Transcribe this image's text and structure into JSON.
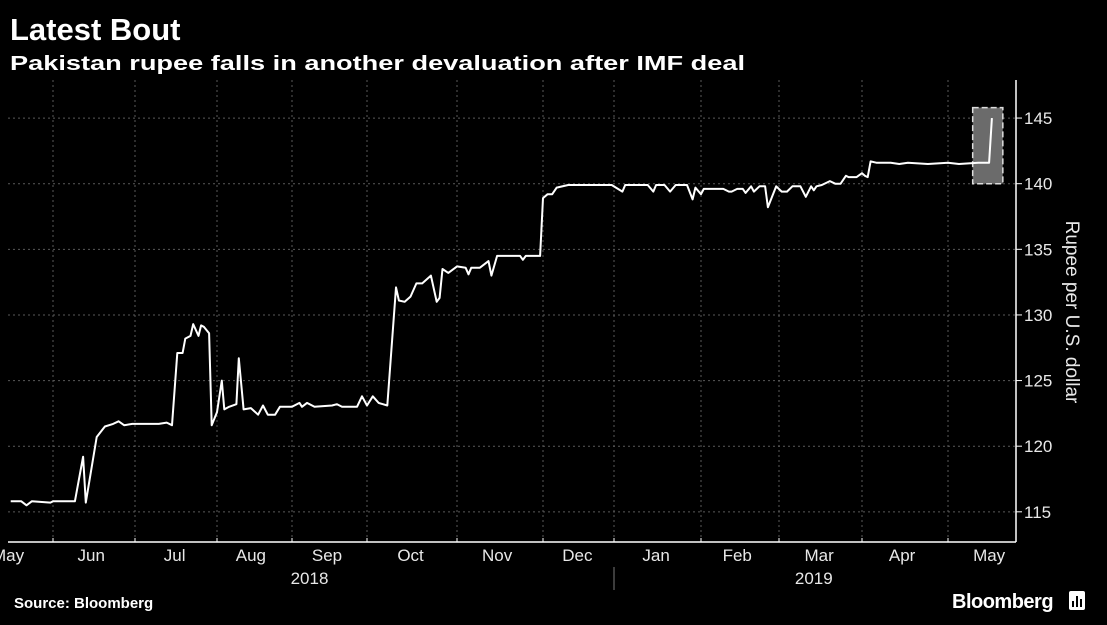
{
  "header": {
    "title": "Latest Bout",
    "subtitle": "Pakistan rupee falls in another devaluation after IMF deal"
  },
  "footer": {
    "source": "Source: Bloomberg",
    "logo": "Bloomberg"
  },
  "colors": {
    "background": "#000000",
    "line": "#ffffff",
    "grid": "#5a5a5a",
    "highlight": "#6b6b6b"
  },
  "chart_data": {
    "type": "line",
    "title": "Latest Bout",
    "subtitle": "Pakistan rupee falls in another devaluation after IMF deal",
    "xlabel": "",
    "ylabel": "Rupee per U.S. dollar",
    "ylim": [
      112.7,
      147.9
    ],
    "xlim": [
      "2018-05-15",
      "2019-05-26"
    ],
    "y_axis_side": "right",
    "grid": true,
    "yticks": [
      115,
      120,
      125,
      130,
      135,
      140,
      145
    ],
    "xticks": [
      {
        "label": "May",
        "date": "2018-05-15"
      },
      {
        "label": "Jun",
        "date": "2018-06-15"
      },
      {
        "label": "Jul",
        "date": "2018-07-16"
      },
      {
        "label": "Aug",
        "date": "2018-08-15"
      },
      {
        "label": "Sep",
        "date": "2018-09-15"
      },
      {
        "label": "Oct",
        "date": "2018-10-16"
      },
      {
        "label": "Nov",
        "date": "2018-11-15"
      },
      {
        "label": "Dec",
        "date": "2018-12-16"
      },
      {
        "label": "Jan",
        "date": "2019-01-16"
      },
      {
        "label": "Feb",
        "date": "2019-02-14"
      },
      {
        "label": "Mar",
        "date": "2019-03-16"
      },
      {
        "label": "Apr",
        "date": "2019-04-15"
      },
      {
        "label": "May",
        "date": "2019-05-16"
      }
    ],
    "year_labels": [
      {
        "label": "2018",
        "date": "2018-09-08"
      },
      {
        "label": "2019",
        "date": "2019-03-14"
      }
    ],
    "highlight": {
      "x": [
        "2019-05-10",
        "2019-05-21"
      ],
      "y": [
        140,
        145.8
      ]
    },
    "series": [
      {
        "x": [
          "2018-05-16",
          "2018-05-20",
          "2018-05-22",
          "2018-05-24",
          "2018-05-31",
          "2018-06-01",
          "2018-06-09",
          "2018-06-12",
          "2018-06-13",
          "2018-06-17",
          "2018-06-20",
          "2018-06-23",
          "2018-06-25",
          "2018-06-27",
          "2018-06-30",
          "2018-07-10",
          "2018-07-13",
          "2018-07-15",
          "2018-07-17",
          "2018-07-19",
          "2018-07-20",
          "2018-07-22",
          "2018-07-23",
          "2018-07-25",
          "2018-07-26",
          "2018-07-27",
          "2018-07-29",
          "2018-07-30",
          "2018-08-01",
          "2018-08-03",
          "2018-08-04",
          "2018-08-06",
          "2018-08-09",
          "2018-08-10",
          "2018-08-12",
          "2018-08-15",
          "2018-08-18",
          "2018-08-20",
          "2018-08-22",
          "2018-08-25",
          "2018-08-27",
          "2018-09-01",
          "2018-09-04",
          "2018-09-05",
          "2018-09-07",
          "2018-09-10",
          "2018-09-17",
          "2018-09-19",
          "2018-09-21",
          "2018-09-27",
          "2018-09-29",
          "2018-10-01",
          "2018-10-03",
          "2018-10-05",
          "2018-10-08",
          "2018-10-11",
          "2018-10-12",
          "2018-10-14",
          "2018-10-16",
          "2018-10-18",
          "2018-10-20",
          "2018-10-23",
          "2018-10-25",
          "2018-10-26",
          "2018-10-27",
          "2018-10-29",
          "2018-11-01",
          "2018-11-04",
          "2018-11-05",
          "2018-11-06",
          "2018-11-09",
          "2018-11-12",
          "2018-11-13",
          "2018-11-15",
          "2018-11-23",
          "2018-11-24",
          "2018-11-25",
          "2018-11-30",
          "2018-12-01",
          "2018-12-03",
          "2018-12-05",
          "2018-12-07",
          "2018-12-12",
          "2018-12-31",
          "2019-01-04",
          "2019-01-05",
          "2019-01-13",
          "2019-01-15",
          "2019-01-16",
          "2019-01-19",
          "2019-01-21",
          "2019-01-23",
          "2019-01-27",
          "2019-01-29",
          "2019-01-30",
          "2019-02-01",
          "2019-02-02",
          "2019-02-09",
          "2019-02-11",
          "2019-02-12",
          "2019-02-14",
          "2019-02-16",
          "2019-02-17",
          "2019-02-19",
          "2019-02-20",
          "2019-02-22",
          "2019-02-24",
          "2019-02-25",
          "2019-02-28",
          "2019-03-02",
          "2019-03-04",
          "2019-03-06",
          "2019-03-09",
          "2019-03-11",
          "2019-03-13",
          "2019-03-14",
          "2019-03-15",
          "2019-03-17",
          "2019-03-20",
          "2019-03-22",
          "2019-03-24",
          "2019-03-26",
          "2019-03-27",
          "2019-03-30",
          "2019-04-01",
          "2019-04-02",
          "2019-04-03",
          "2019-04-04",
          "2019-04-06",
          "2019-04-11",
          "2019-04-14",
          "2019-04-17",
          "2019-04-24",
          "2019-05-01",
          "2019-05-05",
          "2019-05-12",
          "2019-05-16",
          "2019-05-17"
        ],
        "values": [
          115.8,
          115.8,
          115.5,
          115.8,
          115.7,
          115.8,
          115.8,
          119.2,
          115.7,
          120.7,
          121.5,
          121.7,
          121.9,
          121.6,
          121.7,
          121.7,
          121.8,
          121.6,
          127.1,
          127.1,
          128.2,
          128.4,
          129.3,
          128.4,
          129.2,
          129.1,
          128.6,
          121.6,
          122.6,
          125.0,
          122.8,
          123.0,
          123.2,
          126.7,
          122.8,
          122.9,
          122.4,
          123.1,
          122.4,
          122.4,
          123.0,
          123.0,
          123.3,
          123.0,
          123.3,
          123.0,
          123.1,
          123.2,
          123.0,
          123.0,
          123.8,
          123.1,
          123.8,
          123.3,
          123.1,
          132.1,
          131.1,
          131.0,
          131.4,
          132.4,
          132.4,
          133.0,
          131.0,
          131.3,
          133.5,
          133.2,
          133.7,
          133.6,
          133.1,
          133.6,
          133.6,
          134.1,
          133.0,
          134.5,
          134.5,
          134.2,
          134.5,
          134.5,
          138.9,
          139.2,
          139.2,
          139.7,
          139.9,
          139.9,
          139.4,
          139.9,
          139.9,
          139.4,
          139.9,
          139.9,
          139.4,
          139.9,
          139.9,
          138.8,
          139.7,
          139.2,
          139.6,
          139.6,
          139.4,
          139.4,
          139.6,
          139.6,
          139.3,
          139.8,
          139.4,
          139.8,
          139.8,
          138.2,
          139.8,
          139.4,
          139.4,
          139.8,
          139.8,
          139.0,
          139.8,
          139.5,
          139.8,
          139.9,
          140.2,
          140.0,
          140.0,
          140.6,
          140.5,
          140.5,
          140.8,
          140.6,
          140.5,
          141.7,
          141.6,
          141.6,
          141.5,
          141.6,
          141.5,
          141.6,
          141.5,
          141.6,
          141.6,
          145.0
        ]
      }
    ]
  }
}
